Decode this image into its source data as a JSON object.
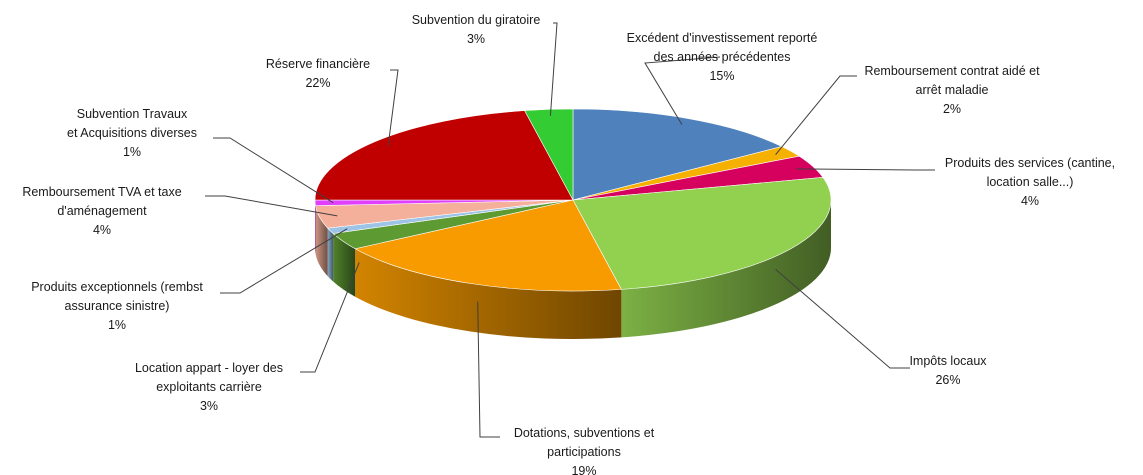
{
  "chart_data": {
    "type": "pie",
    "style": "3d-pie",
    "units": "%",
    "slices": [
      {
        "name": "Excédent d'investissement reporté des années précédentes",
        "lines": [
          "Excédent d'investissement reporté",
          "des années précédentes"
        ],
        "value": 15,
        "display": "15%",
        "color": "#4F81BD"
      },
      {
        "name": "Remboursement contrat aidé et arrêt maladie",
        "lines": [
          "Remboursement  contrat aidé et",
          "arrêt maladie"
        ],
        "value": 2,
        "display": "2%",
        "color": "#F5B000"
      },
      {
        "name": "Produits des services (cantine, location salle...)",
        "lines": [
          "Produits des services (cantine,",
          "location salle...)"
        ],
        "value": 4,
        "display": "4%",
        "color": "#D6005F"
      },
      {
        "name": "Impôts locaux",
        "lines": [
          "Impôts locaux"
        ],
        "value": 26,
        "display": "26%",
        "color": "#92D050"
      },
      {
        "name": "Dotations, subventions et participations",
        "lines": [
          "Dotations, subventions et",
          "participations"
        ],
        "value": 19,
        "display": "19%",
        "color": "#F79B00"
      },
      {
        "name": "Location appart - loyer des exploitants carrière",
        "lines": [
          "Location appart - loyer des",
          "exploitants carrière"
        ],
        "value": 3,
        "display": "3%",
        "color": "#5E9A32"
      },
      {
        "name": "Produits exceptionnels (rembst assurance sinistre)",
        "lines": [
          "Produits exceptionnels (rembst",
          "assurance sinistre)"
        ],
        "value": 1,
        "display": "1%",
        "color": "#9DC3E6"
      },
      {
        "name": "Remboursement TVA et taxe d'aménagement",
        "lines": [
          "Remboursement  TVA et taxe",
          "d'aménagement"
        ],
        "value": 4,
        "display": "4%",
        "color": "#F4B09A"
      },
      {
        "name": "Subvention Travaux et Acquisitions diverses",
        "lines": [
          "Subvention Travaux",
          "et Acquisitions diverses"
        ],
        "value": 1,
        "display": "1%",
        "color": "#E040FB"
      },
      {
        "name": "Réserve financière",
        "lines": [
          "Réserve financière"
        ],
        "value": 22,
        "display": "22%",
        "color": "#C00000"
      },
      {
        "name": "Subvention du giratoire",
        "lines": [
          "Subvention du giratoire"
        ],
        "value": 3,
        "display": "3%",
        "color": "#33CC33"
      }
    ]
  }
}
